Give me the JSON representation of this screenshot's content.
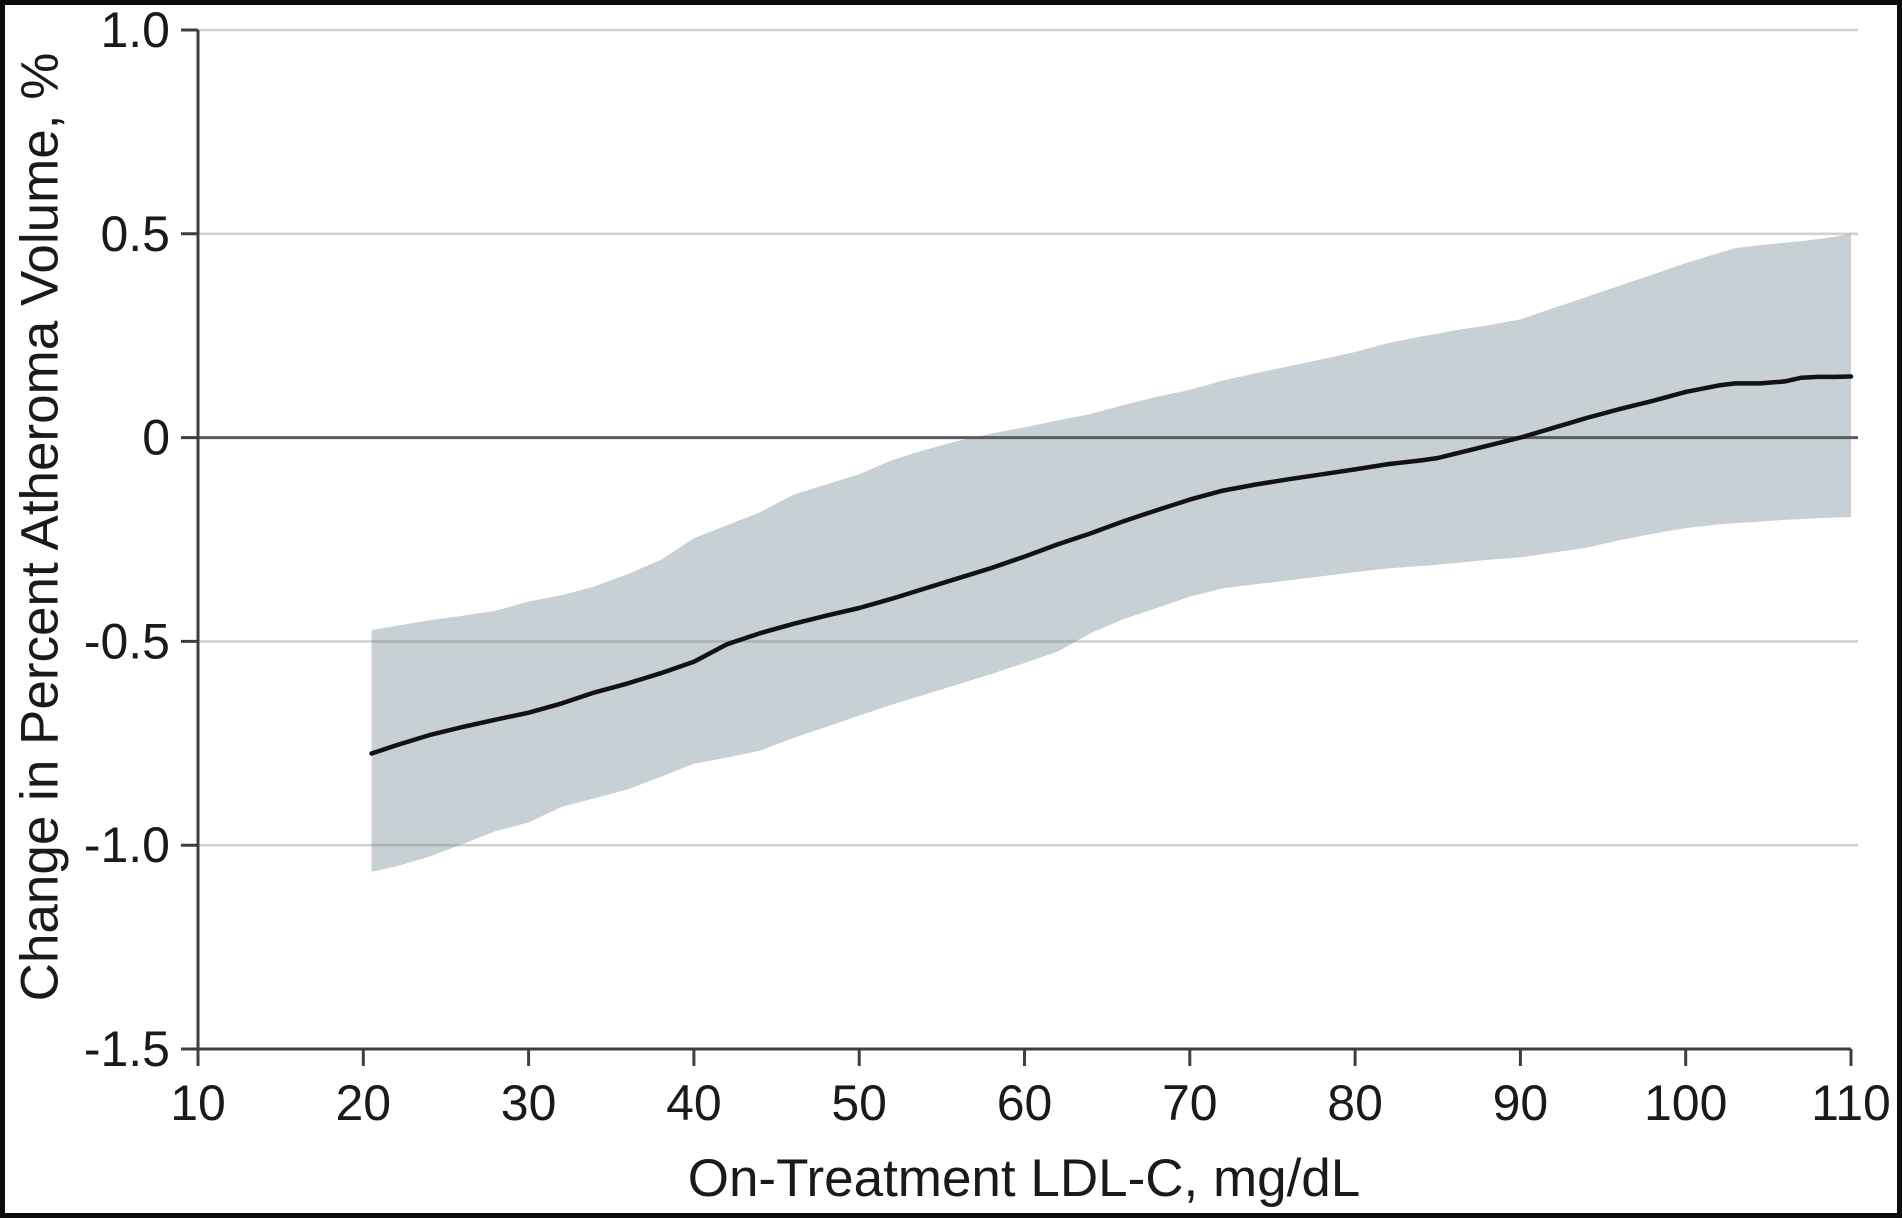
{
  "figure": {
    "background_color": "#ffffff",
    "frame_color": "#0c0c0c",
    "text_color": "#1a1a1a"
  },
  "chart_data": {
    "type": "line",
    "title": "",
    "xlabel": "On-Treatment LDL-C, mg/dL",
    "ylabel": "Change in Percent Atheroma Volume, %",
    "xlim": [
      10,
      110
    ],
    "ylim": [
      -1.5,
      1.0
    ],
    "grid": "horizontal",
    "grid_values": [
      1.0,
      0.5,
      -0.5,
      -1.0
    ],
    "zero_reference_line": true,
    "legend": "none",
    "x_ticks": {
      "values": [
        10,
        20,
        30,
        40,
        50,
        60,
        70,
        80,
        90,
        100,
        110
      ],
      "labels": [
        "10",
        "20",
        "30",
        "40",
        "50",
        "60",
        "70",
        "80",
        "90",
        "100",
        "110"
      ]
    },
    "y_ticks": {
      "values": [
        1.0,
        0.5,
        0,
        -0.5,
        -1.0,
        -1.5
      ],
      "labels": [
        "1.0",
        "0.5",
        "0",
        "-0.5",
        "-1.0",
        "-1.5"
      ]
    },
    "x": [
      20.5,
      22,
      24,
      26,
      28,
      30,
      32,
      34,
      36,
      38,
      40,
      42,
      44,
      46,
      48,
      50,
      52,
      54,
      56,
      58,
      60,
      62,
      64,
      66,
      68,
      70,
      72,
      74,
      76,
      78,
      80,
      82,
      84,
      85,
      86,
      88,
      90,
      92,
      94,
      96,
      98,
      100,
      102,
      103,
      104.5,
      106,
      107,
      108,
      109,
      110
    ],
    "series": [
      {
        "name": "mean change in percent atheroma volume (fitted curve)",
        "kind": "line",
        "color": "#121212",
        "y": [
          -0.775,
          -0.755,
          -0.73,
          -0.71,
          -0.692,
          -0.675,
          -0.652,
          -0.625,
          -0.603,
          -0.578,
          -0.55,
          -0.507,
          -0.48,
          -0.457,
          -0.437,
          -0.418,
          -0.395,
          -0.37,
          -0.345,
          -0.32,
          -0.292,
          -0.262,
          -0.235,
          -0.205,
          -0.178,
          -0.152,
          -0.13,
          -0.115,
          -0.102,
          -0.09,
          -0.078,
          -0.065,
          -0.056,
          -0.05,
          -0.04,
          -0.02,
          0.0,
          0.024,
          0.048,
          0.07,
          0.09,
          0.112,
          0.128,
          0.133,
          0.133,
          0.138,
          0.147,
          0.149,
          0.149,
          0.15
        ]
      },
      {
        "name": "95% confidence band",
        "kind": "band",
        "color": "#c7d0d5",
        "upper": [
          -0.472,
          -0.462,
          -0.448,
          -0.437,
          -0.425,
          -0.402,
          -0.387,
          -0.365,
          -0.335,
          -0.3,
          -0.247,
          -0.215,
          -0.183,
          -0.14,
          -0.115,
          -0.09,
          -0.055,
          -0.03,
          -0.008,
          0.01,
          0.025,
          0.042,
          0.058,
          0.08,
          0.1,
          0.117,
          0.14,
          0.158,
          0.175,
          0.192,
          0.21,
          0.232,
          0.248,
          0.255,
          0.263,
          0.275,
          0.29,
          0.318,
          0.345,
          0.373,
          0.4,
          0.428,
          0.453,
          0.465,
          0.472,
          0.478,
          0.482,
          0.487,
          0.493,
          0.5
        ],
        "lower": [
          -1.065,
          -1.052,
          -1.028,
          -0.997,
          -0.966,
          -0.944,
          -0.906,
          -0.885,
          -0.863,
          -0.832,
          -0.8,
          -0.785,
          -0.768,
          -0.737,
          -0.71,
          -0.682,
          -0.655,
          -0.63,
          -0.605,
          -0.58,
          -0.553,
          -0.525,
          -0.48,
          -0.445,
          -0.418,
          -0.39,
          -0.37,
          -0.36,
          -0.35,
          -0.34,
          -0.33,
          -0.321,
          -0.315,
          -0.312,
          -0.308,
          -0.3,
          -0.294,
          -0.282,
          -0.27,
          -0.252,
          -0.236,
          -0.222,
          -0.213,
          -0.21,
          -0.206,
          -0.202,
          -0.2,
          -0.198,
          -0.196,
          -0.195
        ]
      }
    ],
    "style_colors": {
      "gridline": "rgba(120,125,128,0.35)",
      "zero_line": "#575c5f",
      "axis": "#3c3f41",
      "band_fill": "#c7d0d5",
      "trend_line": "#121212"
    }
  }
}
